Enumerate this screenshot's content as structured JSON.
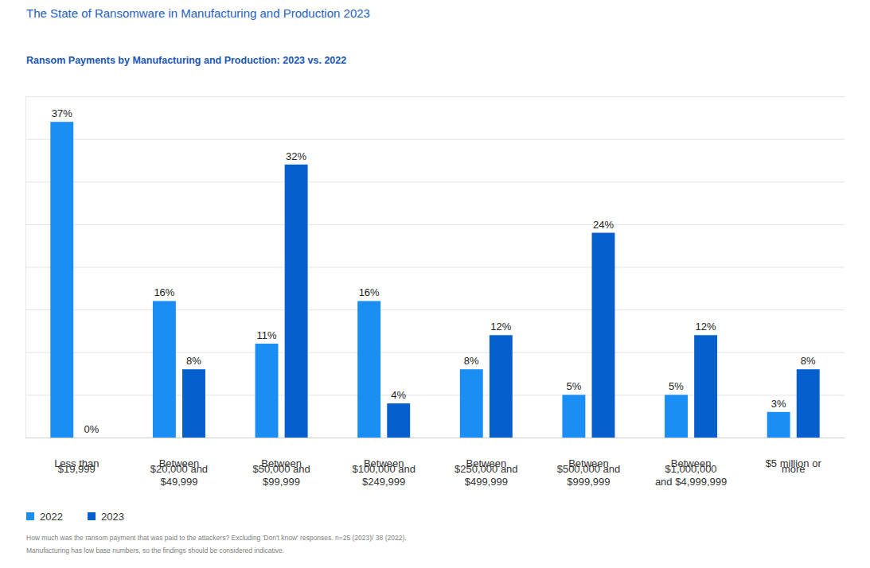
{
  "chart_data": {
    "type": "bar",
    "title": "The State of Ransomware in Manufacturing and Production 2023",
    "subtitle": "Ransom Payments by Manufacturing and Production: 2023 vs. 2022",
    "categories": [
      "Less than\n$19,999",
      "Between\n$20,000 and\n$49,999",
      "Between\n$50,000 and\n$99,999",
      "Between\n$100,000 and\n$249,999",
      "Between\n$250,000 and\n$499,999",
      "Between\n$500,000 and\n$999,999",
      "Between\n$1,000,000\nand $4,999,999",
      "$5 million or\nmore"
    ],
    "series": [
      {
        "name": "2022",
        "color": "#1a8ef2",
        "values": [
          37,
          16,
          11,
          16,
          8,
          5,
          5,
          3
        ],
        "value_labels": [
          "37%",
          "16%",
          "11%",
          "16%",
          "8%",
          "5%",
          "5%",
          "3%"
        ]
      },
      {
        "name": "2023",
        "color": "#065fcc",
        "values": [
          0,
          8,
          32,
          4,
          12,
          24,
          12,
          8
        ],
        "value_labels": [
          "0%",
          "8%",
          "32%",
          "4%",
          "12%",
          "24%",
          "12%",
          "8%"
        ]
      }
    ],
    "ylim": [
      0,
      40
    ],
    "yticks": [
      0,
      5,
      10,
      15,
      20,
      25,
      30,
      35,
      40
    ],
    "grid": true,
    "tick_labels": "x",
    "data_labels": true,
    "legend": "bottom-left",
    "annotations": [
      "How much was the ransom payment that was paid to the attackers? Excluding 'Don't know' responses. n=25 (2023)/ 38 (2022).",
      "Manufacturing has low base numbers, so the findings should be considered indicative."
    ]
  }
}
